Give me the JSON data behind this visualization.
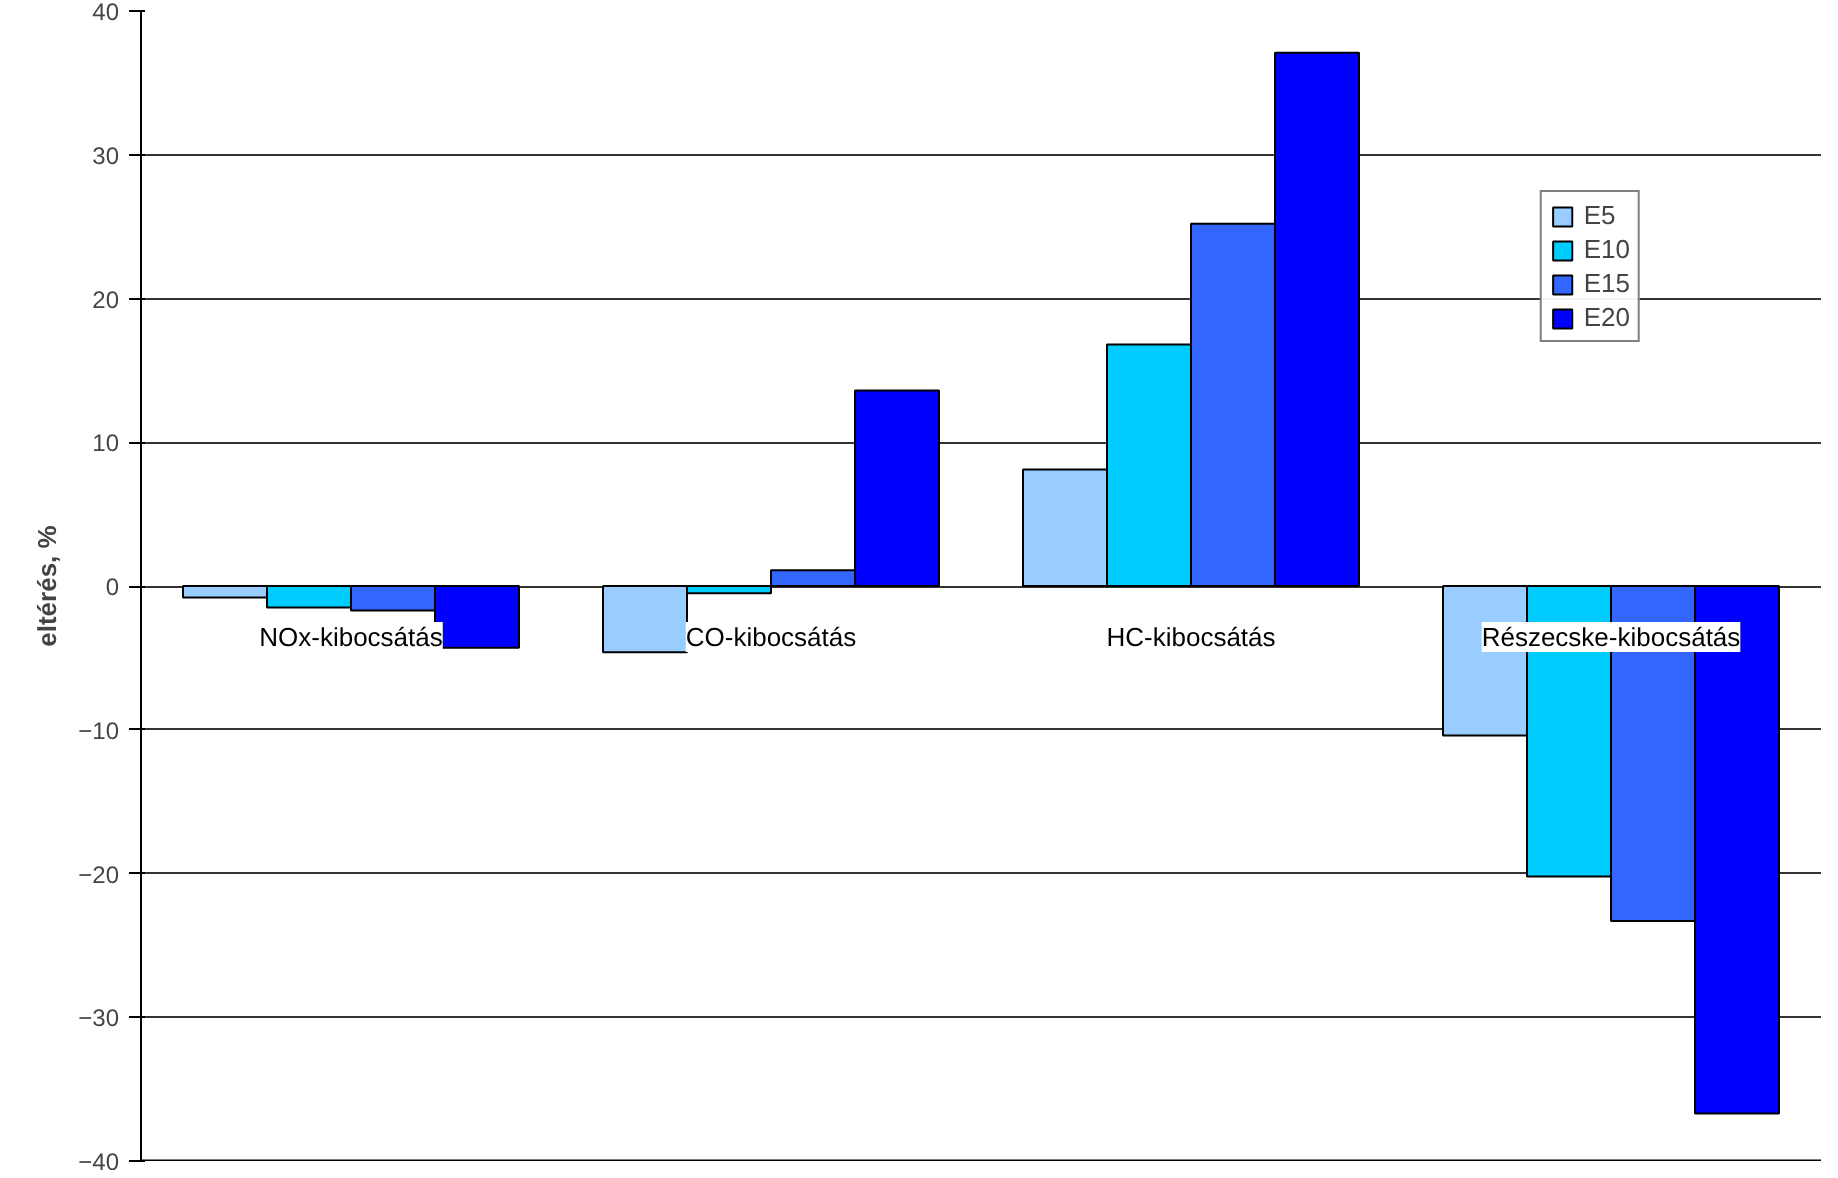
{
  "chart_data": {
    "type": "bar",
    "ylabel": "eltérés, %",
    "categories": [
      "NOx-kibocsátás",
      "CO-kibocsátás",
      "HC-kibocsátás",
      "Részecske-kibocsátás"
    ],
    "series": [
      {
        "name": "E5",
        "color": "#99ccff",
        "values": [
          -0.8,
          -4.6,
          8.1,
          -10.4
        ]
      },
      {
        "name": "E10",
        "color": "#00ccff",
        "values": [
          -1.5,
          -0.5,
          16.8,
          -20.2
        ]
      },
      {
        "name": "E15",
        "color": "#3366ff",
        "values": [
          -1.7,
          1.1,
          25.2,
          -23.3
        ]
      },
      {
        "name": "E20",
        "color": "#0000ff",
        "values": [
          -4.3,
          13.6,
          37.1,
          -36.7
        ]
      }
    ],
    "ylim": [
      -40,
      40
    ],
    "yticks": [
      -40,
      -30,
      -20,
      -10,
      0,
      10,
      20,
      30,
      40
    ],
    "grid": "y",
    "legend": "top right"
  }
}
